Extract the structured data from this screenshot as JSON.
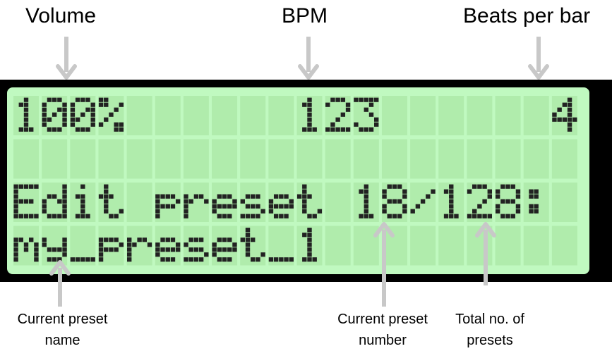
{
  "labels": {
    "volume": "Volume",
    "bpm": "BPM",
    "beats_per_bar": "Beats per bar",
    "current_preset_name": "Current preset\nname",
    "current_preset_number": "Current preset\nnumber",
    "total_presets": "Total no. of\npresets"
  },
  "display": {
    "columns": 20,
    "rows": 4,
    "lines": [
      "100%      123      4",
      "",
      "Edit preset 18/128:",
      "my_preset_1"
    ]
  },
  "colors": {
    "bezel": "#000000",
    "screen": "#c0f9c0",
    "cell": "#b0ecac",
    "lit_pixel": "#222222",
    "arrow": "#c8c8c8"
  }
}
